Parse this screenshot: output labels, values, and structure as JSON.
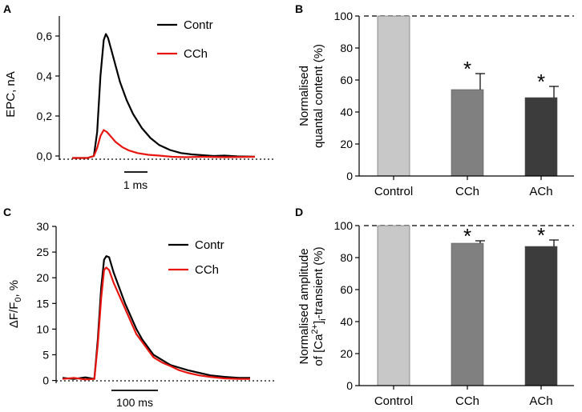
{
  "figure": {
    "panels": [
      "A",
      "B",
      "C",
      "D"
    ]
  },
  "chart_data": [
    {
      "panel": "A",
      "type": "line",
      "ylabel": "EPC, nA",
      "xlabel": "",
      "ylim": [
        -0.02,
        0.7
      ],
      "yticks": [
        0.0,
        0.2,
        0.4,
        0.6
      ],
      "yticklabels": [
        "0,0",
        "0,2",
        "0,4",
        "0,6"
      ],
      "scale_bar": "1 ms",
      "baseline": "dotted line at 0",
      "legend": [
        "Contr",
        "CCh"
      ],
      "series": [
        {
          "name": "Contr",
          "color": "#000000",
          "x": [
            0,
            0.7,
            1.0,
            1.15,
            1.3,
            1.45,
            1.55,
            1.65,
            1.8,
            2.0,
            2.2,
            2.5,
            2.8,
            3.2,
            3.6,
            4.0,
            4.5,
            5.0,
            5.5,
            6.0,
            6.5,
            7.0,
            7.6,
            8.4
          ],
          "y": [
            -0.01,
            -0.01,
            0.0,
            0.12,
            0.4,
            0.58,
            0.61,
            0.59,
            0.53,
            0.45,
            0.37,
            0.28,
            0.21,
            0.14,
            0.09,
            0.055,
            0.03,
            0.015,
            0.008,
            0.004,
            0.0,
            0.002,
            -0.002,
            -0.003
          ]
        },
        {
          "name": "CCh",
          "color": "#e8150f",
          "x": [
            0,
            0.7,
            1.0,
            1.15,
            1.3,
            1.45,
            1.6,
            1.8,
            2.0,
            2.3,
            2.6,
            3.0,
            3.5,
            4.0,
            4.6,
            5.2,
            6.0,
            7.0,
            8.4
          ],
          "y": [
            -0.01,
            -0.01,
            0.0,
            0.04,
            0.1,
            0.13,
            0.12,
            0.095,
            0.07,
            0.045,
            0.028,
            0.015,
            0.006,
            0.002,
            -0.004,
            -0.006,
            -0.004,
            -0.006,
            -0.004
          ]
        }
      ]
    },
    {
      "panel": "B",
      "type": "bar",
      "ylabel_lines": [
        "Normalised",
        "quantal content (%)"
      ],
      "xlabel": "",
      "ylim": [
        0,
        100
      ],
      "yticks": [
        0,
        20,
        40,
        60,
        80,
        100
      ],
      "categories": [
        "Control",
        "CCh",
        "ACh"
      ],
      "values": [
        100,
        54,
        49
      ],
      "errors": [
        0,
        10,
        7
      ],
      "colors": [
        "#c8c8c8",
        "#808080",
        "#3c3c3c"
      ],
      "significance": [
        "",
        "*",
        "*"
      ],
      "reference_line": 100
    },
    {
      "panel": "C",
      "type": "line",
      "ylabel": "ΔF/F0, %",
      "ylabel_main": "ΔF/F",
      "ylabel_sub": "0",
      "ylabel_tail": ", %",
      "xlabel": "",
      "ylim": [
        -1,
        30
      ],
      "yticks": [
        0,
        5,
        10,
        15,
        20,
        25,
        30
      ],
      "scale_bar": "100 ms",
      "baseline": "dotted line at 0",
      "legend": [
        "Contr",
        "CCh"
      ],
      "series": [
        {
          "name": "Contr",
          "color": "#000000",
          "x": [
            0,
            20,
            40,
            56,
            62,
            68,
            73,
            77,
            82,
            90,
            100,
            110,
            120,
            130,
            140,
            150,
            160,
            175,
            190,
            205,
            220,
            240,
            260,
            285,
            310,
            330
          ],
          "y": [
            0.5,
            0.3,
            0.6,
            0.3,
            8,
            18,
            23.5,
            24.2,
            24.0,
            21,
            18,
            15,
            12.5,
            10,
            8,
            6.5,
            5,
            4,
            3,
            2.5,
            2,
            1.5,
            1,
            0.7,
            0.5,
            0.5
          ]
        },
        {
          "name": "CCh",
          "color": "#e8150f",
          "x": [
            0,
            20,
            40,
            56,
            62,
            68,
            73,
            77,
            82,
            90,
            100,
            110,
            120,
            130,
            140,
            150,
            160,
            175,
            190,
            205,
            220,
            240,
            260,
            285,
            310,
            330
          ],
          "y": [
            0.3,
            0.5,
            0.2,
            0.3,
            7,
            16,
            21.5,
            22.0,
            21.5,
            19,
            16.5,
            14,
            11.5,
            9,
            7.5,
            6,
            4.5,
            3.5,
            2.8,
            2,
            1.5,
            1,
            0.7,
            0.4,
            0.3,
            0.3
          ]
        }
      ]
    },
    {
      "panel": "D",
      "type": "bar",
      "ylabel_lines": [
        "Normalised amplitude",
        "of [Ca2+]i-transient (%)"
      ],
      "xlabel": "",
      "ylim": [
        0,
        100
      ],
      "yticks": [
        0,
        20,
        40,
        60,
        80,
        100
      ],
      "categories": [
        "Control",
        "CCh",
        "ACh"
      ],
      "values": [
        100,
        89,
        87
      ],
      "errors": [
        0,
        1.5,
        4
      ],
      "colors": [
        "#c8c8c8",
        "#808080",
        "#3c3c3c"
      ],
      "significance": [
        "",
        "*",
        "*"
      ],
      "reference_line": 100
    }
  ],
  "labels": {
    "ca_prefix": "of [Ca",
    "ca_sup": "2+",
    "ca_mid": "]",
    "ca_sub": "i",
    "ca_suffix": "-transient (%)"
  }
}
